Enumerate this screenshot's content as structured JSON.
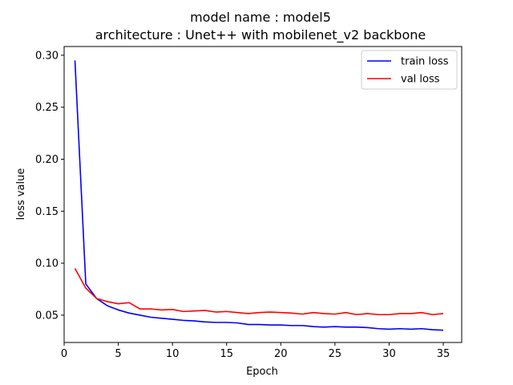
{
  "chart_data": {
    "type": "line",
    "title": "model name : model5",
    "subtitle": "architecture : Unet++ with mobilenet_v2 backbone",
    "xlabel": "Epoch",
    "ylabel": "loss value",
    "xlim": [
      0,
      36.7
    ],
    "ylim": [
      0.0237,
      0.3084
    ],
    "x_ticks": [
      0,
      5,
      10,
      15,
      20,
      25,
      30,
      35
    ],
    "y_ticks": [
      0.05,
      0.1,
      0.15,
      0.2,
      0.25,
      0.3
    ],
    "x_tick_labels": [
      "0",
      "5",
      "10",
      "15",
      "20",
      "25",
      "30",
      "35"
    ],
    "y_tick_labels": [
      "0.05",
      "0.10",
      "0.15",
      "0.20",
      "0.25",
      "0.30"
    ],
    "grid": false,
    "legend_position": "upper right",
    "x": [
      1,
      2,
      3,
      4,
      5,
      6,
      7,
      8,
      9,
      10,
      11,
      12,
      13,
      14,
      15,
      16,
      17,
      18,
      19,
      20,
      21,
      22,
      23,
      24,
      25,
      26,
      27,
      28,
      29,
      30,
      31,
      32,
      33,
      34,
      35
    ],
    "series": [
      {
        "name": "train loss",
        "color": "#0000ff",
        "values": [
          0.295,
          0.08,
          0.066,
          0.059,
          0.055,
          0.052,
          0.05,
          0.048,
          0.047,
          0.046,
          0.045,
          0.0445,
          0.0435,
          0.043,
          0.043,
          0.0425,
          0.041,
          0.041,
          0.0405,
          0.0405,
          0.04,
          0.04,
          0.039,
          0.0385,
          0.039,
          0.0385,
          0.0385,
          0.038,
          0.037,
          0.0365,
          0.037,
          0.0365,
          0.037,
          0.036,
          0.0355
        ]
      },
      {
        "name": "val loss",
        "color": "#ff0000",
        "values": [
          0.095,
          0.076,
          0.066,
          0.063,
          0.061,
          0.062,
          0.056,
          0.056,
          0.055,
          0.0555,
          0.0535,
          0.054,
          0.0545,
          0.053,
          0.0535,
          0.0525,
          0.0515,
          0.0525,
          0.053,
          0.0525,
          0.052,
          0.051,
          0.0525,
          0.0515,
          0.051,
          0.0525,
          0.0505,
          0.0515,
          0.0505,
          0.0505,
          0.0515,
          0.0515,
          0.0525,
          0.0505,
          0.0515
        ]
      }
    ]
  }
}
